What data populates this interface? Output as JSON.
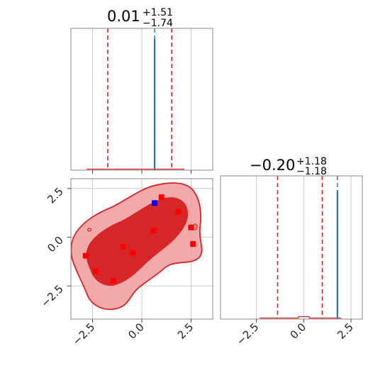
{
  "chart_data": {
    "type": "scatter",
    "kind": "corner-plot",
    "colors": {
      "contour": "#d62728",
      "fill_dark": "#d62728",
      "fill_light": "#ef9a9a",
      "truth_line": "#1f77b4",
      "marker": "#ff0000",
      "highlight_marker": "#0000ff",
      "grid": "#cccccc",
      "frame": "#888888"
    },
    "x_tick_labels": [
      "−2.5",
      "0.0",
      "2.5"
    ],
    "y_tick_labels": [
      "2.5",
      "0.0",
      "−2.5"
    ],
    "panels": [
      {
        "id": "param1-marginal",
        "title": {
          "value": "0.01",
          "upper": "+1.51",
          "lower": "−1.74"
        },
        "xlim": [
          -3.6,
          3.6
        ],
        "ticks": [
          -2.5,
          0,
          2.5
        ],
        "quantile_lines": [
          -1.73,
          1.52
        ],
        "truth_value": 0.65
      },
      {
        "id": "param2-marginal",
        "title": {
          "value": "−0.20",
          "upper": "+1.18",
          "lower": "−1.18"
        },
        "xlim": [
          -4.4,
          3.1
        ],
        "ticks": [
          -2.5,
          0,
          2.5
        ],
        "quantile_lines": [
          -1.38,
          0.98
        ],
        "truth_value": 1.78
      },
      {
        "id": "joint",
        "xlim": [
          -3.6,
          3.6
        ],
        "ylim": [
          -4.2,
          3.0
        ],
        "ticks_x": [
          -2.5,
          0,
          2.5
        ],
        "ticks_y": [
          2.5,
          0,
          -2.5
        ],
        "highlight_point": {
          "x": 0.65,
          "y": 1.75
        },
        "points": [
          {
            "x": 1.0,
            "y": 2.05
          },
          {
            "x": 1.85,
            "y": 1.3
          },
          {
            "x": 2.5,
            "y": 0.5
          },
          {
            "x": 0.6,
            "y": 0.35
          },
          {
            "x": 2.6,
            "y": -0.35
          },
          {
            "x": -0.95,
            "y": -0.5
          },
          {
            "x": -0.45,
            "y": -0.8
          },
          {
            "x": -2.85,
            "y": -0.95
          },
          {
            "x": -2.35,
            "y": -1.75
          },
          {
            "x": -1.45,
            "y": -2.25
          }
        ]
      }
    ]
  }
}
